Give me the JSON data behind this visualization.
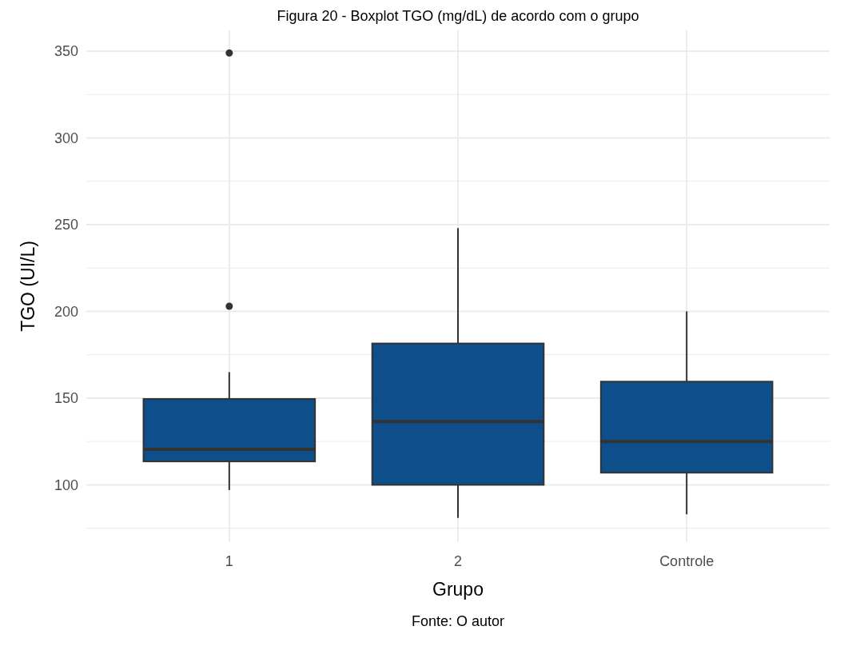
{
  "chart_data": {
    "type": "box",
    "title": "Figura 20 - Boxplot TGO (mg/dL) de acordo com o grupo",
    "xlabel": "Grupo",
    "ylabel": "TGO (UI/L)",
    "annotations": [
      "Fonte: O autor"
    ],
    "categories": [
      "1",
      "2",
      "Controle"
    ],
    "series": [
      {
        "color": "#0e4f8b",
        "boxes": [
          {
            "low": 97,
            "q1": 113.5,
            "median": 120.5,
            "q3": 149.5,
            "high": 165,
            "outliers": [
              203,
              349
            ]
          },
          {
            "low": 81,
            "q1": 100,
            "median": 136.5,
            "q3": 181.5,
            "high": 248
          },
          {
            "low": 83,
            "q1": 107,
            "median": 125,
            "q3": 159.5,
            "high": 200
          }
        ]
      }
    ],
    "ylim": [
      67,
      362
    ],
    "yticks": [
      100,
      150,
      200,
      250,
      300,
      350
    ],
    "grid": true
  }
}
